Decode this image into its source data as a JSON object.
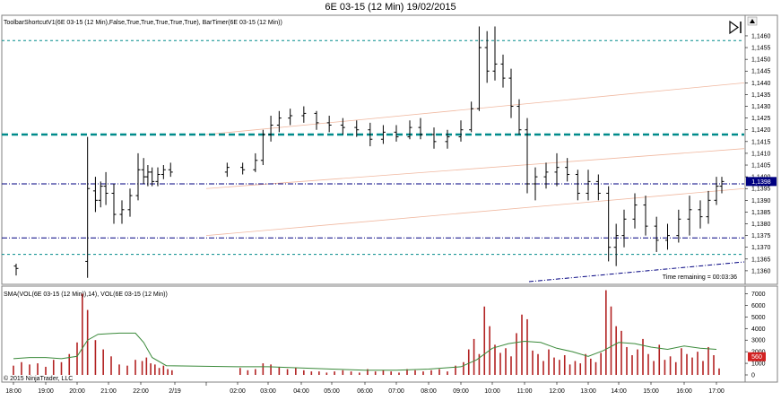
{
  "title": "6E 03-15 (12 Min)  19/02/2015",
  "price_panel": {
    "indicator_label": "ToolbarShortcutV1(6E 03-15 (12 Min),False,True,True,True,True,True), BarTimer(6E 03-15 (12 Min))",
    "time_remaining": "Time remaining = 00:03:36",
    "current_price": "1,1398",
    "y_ticks": [
      "1,1460",
      "1,1455",
      "1,1450",
      "1,1445",
      "1,1440",
      "1,1435",
      "1,1430",
      "1,1425",
      "1,1420",
      "1,1415",
      "1,1410",
      "1,1405",
      "1,1400",
      "1,1395",
      "1,1390",
      "1,1385",
      "1,1380",
      "1,1375",
      "1,1370",
      "1,1365",
      "1,1360"
    ]
  },
  "volume_panel": {
    "label": "SMA(VOL(6E 03-15 (12 Min)),14), VOL(6E 03-15 (12 Min))",
    "current_volume": "560",
    "y_ticks": [
      "7000",
      "6000",
      "5000",
      "4000",
      "3000",
      "2000",
      "1000",
      "0"
    ]
  },
  "copyright": "© 2015 NinjaTrader, LLC",
  "x_ticks": [
    "18:00",
    "19:00",
    "20:00",
    "21:00",
    "22:00",
    "2/19",
    "02:00",
    "03:00",
    "04:00",
    "05:00",
    "06:00",
    "07:00",
    "08:00",
    "09:00",
    "10:00",
    "11:00",
    "12:00",
    "13:00",
    "14:00",
    "15:00",
    "16:00",
    "17:00"
  ],
  "colors": {
    "price_bar": "#000000",
    "volume_bar": "#b22222",
    "sma_line": "#3a8a3a",
    "teal_line": "#008b8b",
    "navy_line": "#000080",
    "channel_line": "#f0b8a0"
  },
  "chart_data": [
    {
      "type": "ohlc",
      "title": "6E 03-15 (12 Min)  19/02/2015",
      "ylim": [
        1.1355,
        1.1468
      ],
      "x_range": [
        "18:00",
        "17:00"
      ],
      "horizontal_levels": [
        {
          "price": 1.1458,
          "style": "teal-dashed"
        },
        {
          "price": 1.1418,
          "style": "teal-thick-dashed"
        },
        {
          "price": 1.1397,
          "style": "navy-dashdot"
        },
        {
          "price": 1.1374,
          "style": "navy-dashdot"
        },
        {
          "price": 1.1367,
          "style": "teal-dashed"
        }
      ],
      "bars": [
        {
          "t": "18:05",
          "o": 1.1362,
          "h": 1.1363,
          "l": 1.1358,
          "c": 1.1361
        },
        {
          "t": "20:20",
          "o": 1.1364,
          "h": 1.1417,
          "l": 1.1357,
          "c": 1.1395
        },
        {
          "t": "20:35",
          "o": 1.1394,
          "h": 1.14,
          "l": 1.1385,
          "c": 1.139
        },
        {
          "t": "20:45",
          "o": 1.139,
          "h": 1.1398,
          "l": 1.1387,
          "c": 1.1396
        },
        {
          "t": "20:55",
          "o": 1.1396,
          "h": 1.1402,
          "l": 1.1388,
          "c": 1.1393
        },
        {
          "t": "21:10",
          "o": 1.1393,
          "h": 1.1397,
          "l": 1.138,
          "c": 1.1384
        },
        {
          "t": "21:25",
          "o": 1.1384,
          "h": 1.139,
          "l": 1.138,
          "c": 1.1386
        },
        {
          "t": "21:40",
          "o": 1.1386,
          "h": 1.1395,
          "l": 1.1383,
          "c": 1.1392
        },
        {
          "t": "21:55",
          "o": 1.1392,
          "h": 1.141,
          "l": 1.139,
          "c": 1.1403
        },
        {
          "t": "22:10",
          "o": 1.1403,
          "h": 1.1408,
          "l": 1.1397,
          "c": 1.14
        },
        {
          "t": "22:25",
          "o": 1.14,
          "h": 1.1405,
          "l": 1.1396,
          "c": 1.1402
        },
        {
          "t": "22:40",
          "o": 1.1402,
          "h": 1.1404,
          "l": 1.1396,
          "c": 1.1398
        },
        {
          "t": "23:00",
          "o": 1.1398,
          "h": 1.1404,
          "l": 1.1396,
          "c": 1.1401
        },
        {
          "t": "23:20",
          "o": 1.1401,
          "h": 1.1405,
          "l": 1.1399,
          "c": 1.1403
        },
        {
          "t": "23:45",
          "o": 1.1403,
          "h": 1.1406,
          "l": 1.14,
          "c": 1.1402
        },
        {
          "t": "01:40",
          "o": 1.1402,
          "h": 1.1406,
          "l": 1.14,
          "c": 1.1404
        },
        {
          "t": "02:10",
          "o": 1.1404,
          "h": 1.1406,
          "l": 1.1401,
          "c": 1.1403
        },
        {
          "t": "02:35",
          "o": 1.1403,
          "h": 1.141,
          "l": 1.1402,
          "c": 1.1407
        },
        {
          "t": "02:50",
          "o": 1.1407,
          "h": 1.142,
          "l": 1.1405,
          "c": 1.1418
        },
        {
          "t": "03:05",
          "o": 1.1418,
          "h": 1.1426,
          "l": 1.1415,
          "c": 1.1422
        },
        {
          "t": "03:20",
          "o": 1.1422,
          "h": 1.1428,
          "l": 1.1419,
          "c": 1.1425
        },
        {
          "t": "03:40",
          "o": 1.1425,
          "h": 1.1429,
          "l": 1.1422,
          "c": 1.1426
        },
        {
          "t": "04:05",
          "o": 1.1426,
          "h": 1.143,
          "l": 1.1423,
          "c": 1.1427
        },
        {
          "t": "04:30",
          "o": 1.1427,
          "h": 1.1428,
          "l": 1.142,
          "c": 1.1423
        },
        {
          "t": "04:55",
          "o": 1.1423,
          "h": 1.1426,
          "l": 1.1419,
          "c": 1.1422
        },
        {
          "t": "05:20",
          "o": 1.1422,
          "h": 1.1425,
          "l": 1.1418,
          "c": 1.1421
        },
        {
          "t": "05:45",
          "o": 1.1421,
          "h": 1.1424,
          "l": 1.1417,
          "c": 1.142
        },
        {
          "t": "06:10",
          "o": 1.142,
          "h": 1.1423,
          "l": 1.1413,
          "c": 1.1416
        },
        {
          "t": "06:35",
          "o": 1.1416,
          "h": 1.1422,
          "l": 1.1414,
          "c": 1.1419
        },
        {
          "t": "07:00",
          "o": 1.1419,
          "h": 1.1422,
          "l": 1.1415,
          "c": 1.1417
        },
        {
          "t": "07:25",
          "o": 1.1417,
          "h": 1.1424,
          "l": 1.1416,
          "c": 1.1421
        },
        {
          "t": "07:45",
          "o": 1.1421,
          "h": 1.1425,
          "l": 1.1416,
          "c": 1.1418
        },
        {
          "t": "08:10",
          "o": 1.1418,
          "h": 1.1421,
          "l": 1.1412,
          "c": 1.1415
        },
        {
          "t": "08:35",
          "o": 1.1415,
          "h": 1.142,
          "l": 1.1412,
          "c": 1.1417
        },
        {
          "t": "09:00",
          "o": 1.1417,
          "h": 1.1424,
          "l": 1.1415,
          "c": 1.142
        },
        {
          "t": "09:20",
          "o": 1.142,
          "h": 1.1432,
          "l": 1.1419,
          "c": 1.1429
        },
        {
          "t": "09:35",
          "o": 1.1429,
          "h": 1.1464,
          "l": 1.1428,
          "c": 1.1455
        },
        {
          "t": "09:50",
          "o": 1.1455,
          "h": 1.1462,
          "l": 1.144,
          "c": 1.1445
        },
        {
          "t": "10:05",
          "o": 1.1445,
          "h": 1.1464,
          "l": 1.1441,
          "c": 1.1448
        },
        {
          "t": "10:20",
          "o": 1.1448,
          "h": 1.1452,
          "l": 1.1438,
          "c": 1.1442
        },
        {
          "t": "10:35",
          "o": 1.1442,
          "h": 1.1446,
          "l": 1.1425,
          "c": 1.143
        },
        {
          "t": "10:50",
          "o": 1.143,
          "h": 1.1433,
          "l": 1.1418,
          "c": 1.142
        },
        {
          "t": "11:05",
          "o": 1.142,
          "h": 1.1425,
          "l": 1.1393,
          "c": 1.1397
        },
        {
          "t": "11:20",
          "o": 1.1397,
          "h": 1.1404,
          "l": 1.139,
          "c": 1.14
        },
        {
          "t": "11:40",
          "o": 1.14,
          "h": 1.1406,
          "l": 1.1395,
          "c": 1.1402
        },
        {
          "t": "12:00",
          "o": 1.1402,
          "h": 1.141,
          "l": 1.1396,
          "c": 1.1404
        },
        {
          "t": "12:20",
          "o": 1.1404,
          "h": 1.1408,
          "l": 1.1398,
          "c": 1.1401
        },
        {
          "t": "12:40",
          "o": 1.1401,
          "h": 1.1403,
          "l": 1.139,
          "c": 1.1393
        },
        {
          "t": "13:00",
          "o": 1.1393,
          "h": 1.1403,
          "l": 1.139,
          "c": 1.1398
        },
        {
          "t": "13:20",
          "o": 1.1398,
          "h": 1.1401,
          "l": 1.139,
          "c": 1.1393
        },
        {
          "t": "13:40",
          "o": 1.1393,
          "h": 1.1396,
          "l": 1.1364,
          "c": 1.137
        },
        {
          "t": "13:55",
          "o": 1.137,
          "h": 1.138,
          "l": 1.1362,
          "c": 1.1375
        },
        {
          "t": "14:10",
          "o": 1.1375,
          "h": 1.1386,
          "l": 1.137,
          "c": 1.1382
        },
        {
          "t": "14:30",
          "o": 1.1382,
          "h": 1.1393,
          "l": 1.1378,
          "c": 1.1388
        },
        {
          "t": "14:50",
          "o": 1.1388,
          "h": 1.1392,
          "l": 1.1375,
          "c": 1.1379
        },
        {
          "t": "15:10",
          "o": 1.1379,
          "h": 1.1383,
          "l": 1.1368,
          "c": 1.1373
        },
        {
          "t": "15:30",
          "o": 1.1373,
          "h": 1.138,
          "l": 1.1369,
          "c": 1.1375
        },
        {
          "t": "15:50",
          "o": 1.1375,
          "h": 1.1386,
          "l": 1.1372,
          "c": 1.1382
        },
        {
          "t": "16:10",
          "o": 1.1382,
          "h": 1.1392,
          "l": 1.1375,
          "c": 1.1386
        },
        {
          "t": "16:30",
          "o": 1.1386,
          "h": 1.139,
          "l": 1.1378,
          "c": 1.1383
        },
        {
          "t": "16:45",
          "o": 1.1383,
          "h": 1.1394,
          "l": 1.138,
          "c": 1.139
        },
        {
          "t": "17:00",
          "o": 1.139,
          "h": 1.14,
          "l": 1.1388,
          "c": 1.1396
        },
        {
          "t": "17:10",
          "o": 1.1396,
          "h": 1.14,
          "l": 1.1393,
          "c": 1.1398
        }
      ]
    },
    {
      "type": "bar",
      "ylim": [
        0,
        7500
      ],
      "volume": [
        {
          "t": "18:00",
          "v": 800
        },
        {
          "t": "18:15",
          "v": 1100
        },
        {
          "t": "18:30",
          "v": 900
        },
        {
          "t": "18:45",
          "v": 1000
        },
        {
          "t": "19:00",
          "v": 700
        },
        {
          "t": "19:15",
          "v": 1300
        },
        {
          "t": "19:30",
          "v": 1100
        },
        {
          "t": "19:45",
          "v": 1800
        },
        {
          "t": "20:00",
          "v": 2800
        },
        {
          "t": "20:10",
          "v": 7000
        },
        {
          "t": "20:20",
          "v": 5600
        },
        {
          "t": "20:35",
          "v": 3000
        },
        {
          "t": "20:50",
          "v": 2200
        },
        {
          "t": "21:05",
          "v": 1600
        },
        {
          "t": "21:20",
          "v": 900
        },
        {
          "t": "21:35",
          "v": 800
        },
        {
          "t": "21:50",
          "v": 1300
        },
        {
          "t": "22:05",
          "v": 1200
        },
        {
          "t": "22:20",
          "v": 1500
        },
        {
          "t": "22:35",
          "v": 1000
        },
        {
          "t": "22:50",
          "v": 900
        },
        {
          "t": "23:05",
          "v": 600
        },
        {
          "t": "23:20",
          "v": 800
        },
        {
          "t": "23:35",
          "v": 500
        },
        {
          "t": "23:50",
          "v": 400
        },
        {
          "t": "02:05",
          "v": 600
        },
        {
          "t": "02:20",
          "v": 400
        },
        {
          "t": "02:35",
          "v": 500
        },
        {
          "t": "02:50",
          "v": 1000
        },
        {
          "t": "03:05",
          "v": 900
        },
        {
          "t": "03:20",
          "v": 700
        },
        {
          "t": "03:35",
          "v": 500
        },
        {
          "t": "03:50",
          "v": 600
        },
        {
          "t": "04:05",
          "v": 400
        },
        {
          "t": "04:20",
          "v": 300
        },
        {
          "t": "04:35",
          "v": 300
        },
        {
          "t": "04:50",
          "v": 200
        },
        {
          "t": "05:05",
          "v": 300
        },
        {
          "t": "05:20",
          "v": 400
        },
        {
          "t": "05:35",
          "v": 300
        },
        {
          "t": "05:50",
          "v": 200
        },
        {
          "t": "06:05",
          "v": 500
        },
        {
          "t": "06:20",
          "v": 300
        },
        {
          "t": "06:35",
          "v": 400
        },
        {
          "t": "06:50",
          "v": 300
        },
        {
          "t": "07:05",
          "v": 200
        },
        {
          "t": "07:20",
          "v": 500
        },
        {
          "t": "07:35",
          "v": 400
        },
        {
          "t": "07:50",
          "v": 300
        },
        {
          "t": "08:05",
          "v": 400
        },
        {
          "t": "08:20",
          "v": 500
        },
        {
          "t": "08:35",
          "v": 300
        },
        {
          "t": "08:50",
          "v": 800
        },
        {
          "t": "09:05",
          "v": 1100
        },
        {
          "t": "09:15",
          "v": 2200
        },
        {
          "t": "09:25",
          "v": 3100
        },
        {
          "t": "09:35",
          "v": 1800
        },
        {
          "t": "09:45",
          "v": 5900
        },
        {
          "t": "09:55",
          "v": 4200
        },
        {
          "t": "10:05",
          "v": 2600
        },
        {
          "t": "10:15",
          "v": 1900
        },
        {
          "t": "10:25",
          "v": 2300
        },
        {
          "t": "10:35",
          "v": 1600
        },
        {
          "t": "10:45",
          "v": 3600
        },
        {
          "t": "10:55",
          "v": 5200
        },
        {
          "t": "11:05",
          "v": 4800
        },
        {
          "t": "11:15",
          "v": 2100
        },
        {
          "t": "11:25",
          "v": 1800
        },
        {
          "t": "11:35",
          "v": 1200
        },
        {
          "t": "11:45",
          "v": 2200
        },
        {
          "t": "11:55",
          "v": 1500
        },
        {
          "t": "12:05",
          "v": 1300
        },
        {
          "t": "12:15",
          "v": 1700
        },
        {
          "t": "12:25",
          "v": 900
        },
        {
          "t": "12:35",
          "v": 1200
        },
        {
          "t": "12:45",
          "v": 1000
        },
        {
          "t": "12:55",
          "v": 1800
        },
        {
          "t": "13:05",
          "v": 1400
        },
        {
          "t": "13:15",
          "v": 1100
        },
        {
          "t": "13:25",
          "v": 1900
        },
        {
          "t": "13:35",
          "v": 7300
        },
        {
          "t": "13:45",
          "v": 5900
        },
        {
          "t": "13:55",
          "v": 4200
        },
        {
          "t": "14:05",
          "v": 3800
        },
        {
          "t": "14:15",
          "v": 2400
        },
        {
          "t": "14:25",
          "v": 1700
        },
        {
          "t": "14:35",
          "v": 2200
        },
        {
          "t": "14:45",
          "v": 3100
        },
        {
          "t": "14:55",
          "v": 1800
        },
        {
          "t": "15:05",
          "v": 1200
        },
        {
          "t": "15:15",
          "v": 2600
        },
        {
          "t": "15:25",
          "v": 1300
        },
        {
          "t": "15:35",
          "v": 1600
        },
        {
          "t": "15:45",
          "v": 1100
        },
        {
          "t": "15:55",
          "v": 2300
        },
        {
          "t": "16:05",
          "v": 1800
        },
        {
          "t": "16:15",
          "v": 1500
        },
        {
          "t": "16:25",
          "v": 2000
        },
        {
          "t": "16:35",
          "v": 1200
        },
        {
          "t": "16:45",
          "v": 2400
        },
        {
          "t": "16:55",
          "v": 1700
        },
        {
          "t": "17:05",
          "v": 560
        }
      ],
      "sma_14": [
        {
          "t": "18:00",
          "v": 1400
        },
        {
          "t": "18:30",
          "v": 1500
        },
        {
          "t": "19:00",
          "v": 1500
        },
        {
          "t": "19:30",
          "v": 1400
        },
        {
          "t": "20:00",
          "v": 1600
        },
        {
          "t": "20:20",
          "v": 3000
        },
        {
          "t": "20:40",
          "v": 3500
        },
        {
          "t": "21:20",
          "v": 3600
        },
        {
          "t": "21:50",
          "v": 3600
        },
        {
          "t": "22:10",
          "v": 2800
        },
        {
          "t": "22:40",
          "v": 1500
        },
        {
          "t": "23:30",
          "v": 800
        },
        {
          "t": "02:00",
          "v": 700
        },
        {
          "t": "03:00",
          "v": 700
        },
        {
          "t": "04:00",
          "v": 600
        },
        {
          "t": "05:00",
          "v": 500
        },
        {
          "t": "06:00",
          "v": 400
        },
        {
          "t": "07:00",
          "v": 400
        },
        {
          "t": "08:00",
          "v": 500
        },
        {
          "t": "09:00",
          "v": 700
        },
        {
          "t": "09:30",
          "v": 1300
        },
        {
          "t": "10:00",
          "v": 2300
        },
        {
          "t": "10:30",
          "v": 2700
        },
        {
          "t": "11:00",
          "v": 2900
        },
        {
          "t": "11:30",
          "v": 2800
        },
        {
          "t": "12:00",
          "v": 2300
        },
        {
          "t": "12:30",
          "v": 2000
        },
        {
          "t": "13:00",
          "v": 1600
        },
        {
          "t": "13:30",
          "v": 2100
        },
        {
          "t": "14:00",
          "v": 2800
        },
        {
          "t": "14:30",
          "v": 2700
        },
        {
          "t": "15:00",
          "v": 2400
        },
        {
          "t": "15:30",
          "v": 2200
        },
        {
          "t": "16:00",
          "v": 2500
        },
        {
          "t": "16:30",
          "v": 2300
        },
        {
          "t": "17:00",
          "v": 2200
        }
      ]
    }
  ]
}
